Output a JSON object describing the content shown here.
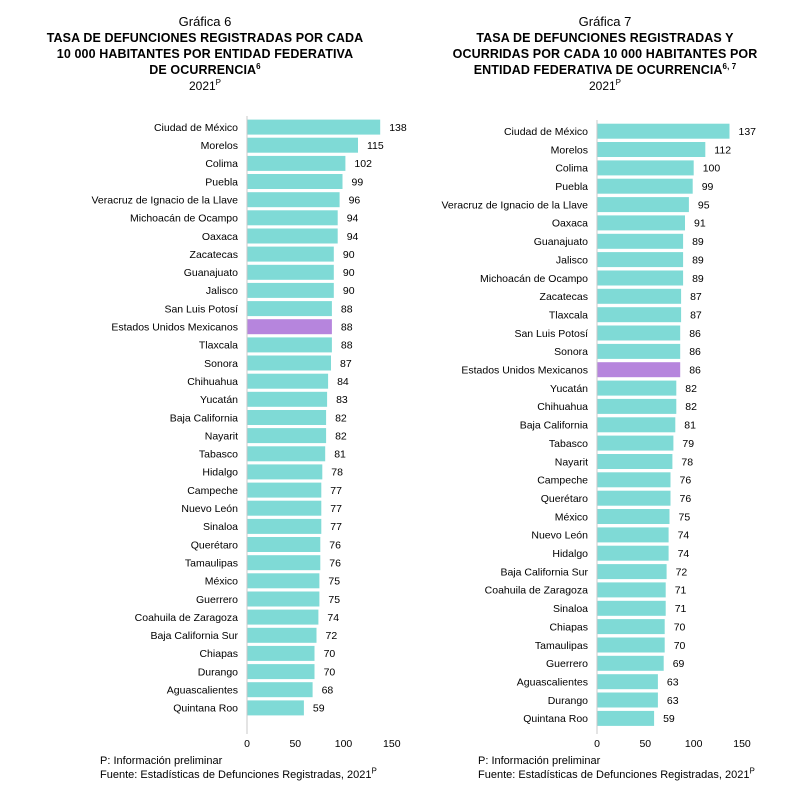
{
  "colors": {
    "bar": "#7fdad6",
    "highlight": "#b685dd",
    "axis": "#c8c8c8"
  },
  "left": {
    "chart_label": "Gráfica 6",
    "title_lines": [
      "TASA DE DEFUNCIONES REGISTRADAS POR CADA",
      "10 000 HABITANTES POR ENTIDAD FEDERATIVA",
      "DE OCURRENCIA"
    ],
    "title_sup": "6",
    "year": "2021",
    "year_sup": "P",
    "note": "P: Información preliminar",
    "source": "Fuente: Estadísticas de Defunciones Registradas, 2021",
    "source_sup": "P"
  },
  "right": {
    "chart_label": "Gráfica 7",
    "title_lines": [
      "TASA DE DEFUNCIONES REGISTRADAS Y",
      "OCURRIDAS POR CADA 10 000 HABITANTES POR",
      "ENTIDAD FEDERATIVA DE OCURRENCIA"
    ],
    "title_sup": "6, 7",
    "year": "2021",
    "year_sup": "P",
    "note": "P: Información preliminar",
    "source": "Fuente: Estadísticas de Defunciones Registradas, 2021",
    "source_sup": "P"
  },
  "chart_data": [
    {
      "type": "bar",
      "orientation": "horizontal",
      "title": "TASA DE DEFUNCIONES REGISTRADAS POR CADA 10 000 HABITANTES POR ENTIDAD FEDERATIVA DE OCURRENCIA",
      "xlim": [
        0,
        150
      ],
      "xticks": [
        0,
        50,
        100,
        150
      ],
      "highlight": "Estados Unidos Mexicanos",
      "categories": [
        "Ciudad de México",
        "Morelos",
        "Colima",
        "Puebla",
        "Veracruz de Ignacio de la Llave",
        "Michoacán de Ocampo",
        "Oaxaca",
        "Zacatecas",
        "Guanajuato",
        "Jalisco",
        "San Luis Potosí",
        "Estados Unidos Mexicanos",
        "Tlaxcala",
        "Sonora",
        "Chihuahua",
        "Yucatán",
        "Baja California",
        "Nayarit",
        "Tabasco",
        "Hidalgo",
        "Campeche",
        "Nuevo León",
        "Sinaloa",
        "Querétaro",
        "Tamaulipas",
        "México",
        "Guerrero",
        "Coahuila de Zaragoza",
        "Baja California Sur",
        "Chiapas",
        "Durango",
        "Aguascalientes",
        "Quintana Roo"
      ],
      "values": [
        138,
        115,
        102,
        99,
        96,
        94,
        94,
        90,
        90,
        90,
        88,
        88,
        88,
        87,
        84,
        83,
        82,
        82,
        81,
        78,
        77,
        77,
        77,
        76,
        76,
        75,
        75,
        74,
        72,
        70,
        70,
        68,
        59
      ]
    },
    {
      "type": "bar",
      "orientation": "horizontal",
      "title": "TASA DE DEFUNCIONES REGISTRADAS Y OCURRIDAS POR CADA 10 000 HABITANTES POR ENTIDAD FEDERATIVA DE OCURRENCIA",
      "xlim": [
        0,
        150
      ],
      "xticks": [
        0,
        50,
        100,
        150
      ],
      "highlight": "Estados Unidos Mexicanos",
      "categories": [
        "Ciudad de México",
        "Morelos",
        "Colima",
        "Puebla",
        "Veracruz de Ignacio de la Llave",
        "Oaxaca",
        "Guanajuato",
        "Jalisco",
        "Michoacán de Ocampo",
        "Zacatecas",
        "Tlaxcala",
        "San Luis Potosí",
        "Sonora",
        "Estados Unidos Mexicanos",
        "Yucatán",
        "Chihuahua",
        "Baja California",
        "Tabasco",
        "Nayarit",
        "Campeche",
        "Querétaro",
        "México",
        "Nuevo León",
        "Hidalgo",
        "Baja California Sur",
        "Coahuila de Zaragoza",
        "Sinaloa",
        "Chiapas",
        "Tamaulipas",
        "Guerrero",
        "Aguascalientes",
        "Durango",
        "Quintana Roo"
      ],
      "values": [
        137,
        112,
        100,
        99,
        95,
        91,
        89,
        89,
        89,
        87,
        87,
        86,
        86,
        86,
        82,
        82,
        81,
        79,
        78,
        76,
        76,
        75,
        74,
        74,
        72,
        71,
        71,
        70,
        70,
        69,
        63,
        63,
        59
      ]
    }
  ]
}
